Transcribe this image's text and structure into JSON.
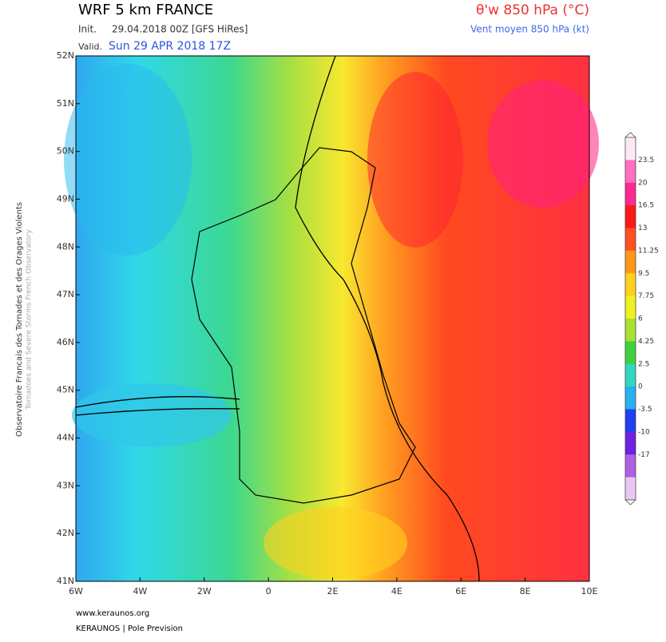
{
  "header": {
    "title": "WRF 5 km FRANCE",
    "init_label": "Init.",
    "init": "29.04.2018 00Z [GFS HiRes]",
    "valid_label": "Valid.",
    "valid": "Sun 29 APR 2018 17Z",
    "parameter": "θ'w 850 hPa (°C)",
    "wind": "Vent moyen 850 hPa (kt)"
  },
  "side_text": [
    "Observatoire Francais des Tornades et des Orages Violents",
    "Tornadoes and Severe Storms French Observatory"
  ],
  "latitudes": [
    "52N",
    "51N",
    "50N",
    "49N",
    "48N",
    "47N",
    "46N",
    "45N",
    "44N",
    "43N",
    "42N",
    "41N"
  ],
  "longitudes": [
    "6W",
    "4W",
    "2W",
    "0",
    "2E",
    "4E",
    "6E",
    "8E",
    "10E"
  ],
  "colorbar": [
    "23.5",
    "20",
    "16.5",
    "13",
    "11.25",
    "9.5",
    "7.75",
    "6",
    "4.25",
    "2.5",
    "0",
    "-3.5",
    "-10",
    "-17"
  ],
  "footer": [
    "www.keraunos.org",
    "KERAUNOS | Pole Prevision"
  ]
}
